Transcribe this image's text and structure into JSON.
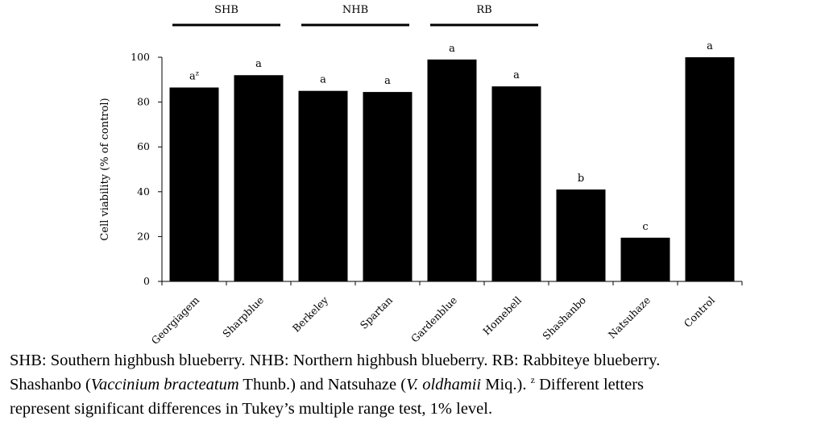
{
  "chart_data": {
    "type": "bar",
    "categories": [
      "Georgiagem",
      "Sharpblue",
      "Berkeley",
      "Spartan",
      "Gardenblue",
      "Homebell",
      "Shashanbo",
      "Natsuhaze",
      "Control"
    ],
    "values": [
      86.5,
      92,
      85,
      84.5,
      99,
      87,
      41,
      19.5,
      100
    ],
    "significance_letters": [
      "a",
      "a",
      "a",
      "a",
      "a",
      "a",
      "b",
      "c",
      "a"
    ],
    "first_letter_superscript": "z",
    "title": "",
    "xlabel": "",
    "ylabel": "Cell viability  (% of control)",
    "ylim": [
      0,
      100
    ],
    "yticks": [
      0,
      20,
      40,
      60,
      80,
      100
    ],
    "grid": false,
    "bar_color": "#000000",
    "groups": [
      {
        "label": "SHB",
        "categories": [
          "Georgiagem",
          "Sharpblue"
        ]
      },
      {
        "label": "NHB",
        "categories": [
          "Berkeley",
          "Spartan"
        ]
      },
      {
        "label": "RB",
        "categories": [
          "Gardenblue",
          "Homebell"
        ]
      }
    ]
  },
  "caption": {
    "line1": "SHB: Southern highbush blueberry. NHB: Northern highbush blueberry. RB: Rabbiteye blueberry.",
    "line2_a": "Shashanbo (",
    "line2_species1": "Vaccinium bracteatum",
    "line2_b": " Thunb.) and Natsuhaze (",
    "line2_species2": "V. oldhamii",
    "line2_c": " Miq.). ",
    "line2_sup": "z",
    "line2_d": " Different letters",
    "line3": "represent significant differences in Tukey’s multiple range test, 1% level."
  }
}
